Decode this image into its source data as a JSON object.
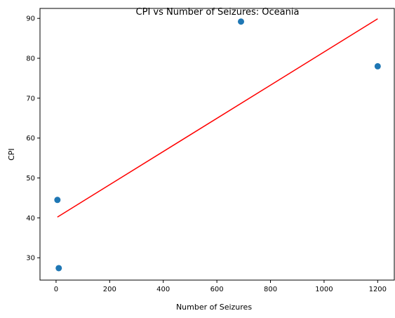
{
  "chart_data": {
    "type": "scatter",
    "title": "CPI vs Number of Seizures: Oceania",
    "xlabel": "Number of Seizures",
    "ylabel": "CPI",
    "xlim": [
      -60,
      1262
    ],
    "ylim": [
      24.4,
      92.5
    ],
    "xticks": [
      0,
      200,
      400,
      600,
      800,
      1000,
      1200
    ],
    "yticks": [
      30,
      40,
      50,
      60,
      70,
      80,
      90
    ],
    "grid": false,
    "points": [
      {
        "x": 5,
        "y": 44.5
      },
      {
        "x": 10,
        "y": 27.4
      },
      {
        "x": 690,
        "y": 89.2
      },
      {
        "x": 1200,
        "y": 78.0
      }
    ],
    "fit_line": {
      "x": [
        5,
        1200
      ],
      "y": [
        40.2,
        89.9
      ]
    },
    "colors": {
      "points": "#1f77b4",
      "fit_line": "#ff0000"
    }
  }
}
